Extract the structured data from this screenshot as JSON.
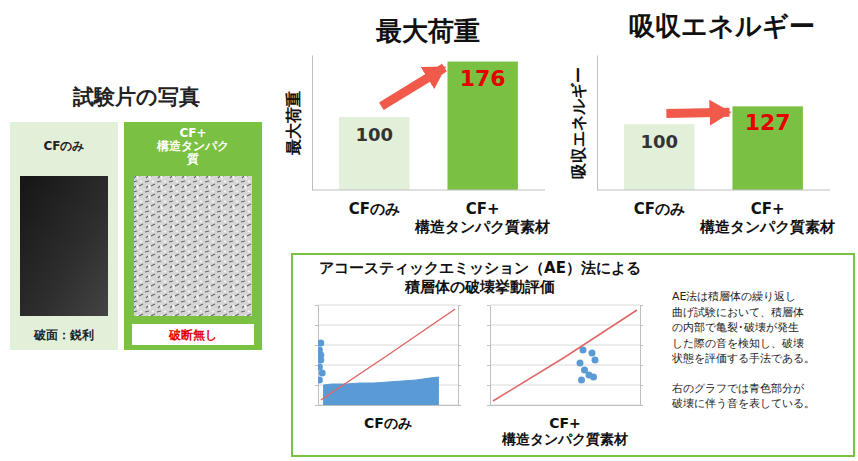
{
  "specimen_panel": {
    "title": "試験片の写真",
    "specimens": [
      {
        "label": "CFのみ",
        "note": "破面：鋭利"
      },
      {
        "label": "CF+\n構造タンパク\n質",
        "note": "破断無し"
      }
    ]
  },
  "chart_data": [
    {
      "type": "bar",
      "title": "最大荷重",
      "y_label": "最大荷重",
      "categories": [
        "CFのみ",
        "CF+\n構造タンパク質素材"
      ],
      "values": [
        100,
        176
      ],
      "colors": [
        "#e2efd9",
        "#7ac143"
      ],
      "ylim": [
        0,
        185
      ],
      "data_labels": true,
      "tick_labels": "x"
    },
    {
      "type": "bar",
      "title": "吸収エネルギー",
      "y_label": "吸収エネルギー",
      "categories": [
        "CFのみ",
        "CF+\n構造タンパク質素材"
      ],
      "values": [
        100,
        127
      ],
      "colors": [
        "#e2efd9",
        "#7ac143"
      ],
      "ylim": [
        0,
        205
      ],
      "data_labels": true,
      "tick_labels": "x"
    },
    {
      "type": "combo",
      "title": "CFのみ",
      "xlim": [
        0,
        100
      ],
      "ylim": [
        0,
        100
      ],
      "yticks": [
        0,
        20,
        40,
        60,
        80,
        100
      ],
      "y2lim": [
        0,
        100
      ],
      "y2ticks": [
        0,
        20,
        40,
        60,
        80,
        100
      ],
      "grid": true,
      "tick_labels": false,
      "series": [
        {
          "type": "area",
          "color": "#5b9bd5",
          "x": [
            4,
            10,
            20,
            30,
            40,
            50,
            60,
            70,
            80,
            86
          ],
          "values": [
            20,
            21,
            21,
            22,
            22,
            23,
            24,
            25,
            27,
            28
          ]
        },
        {
          "type": "scatter",
          "color": "#5b9bd5",
          "x": [
            1,
            2,
            1,
            3,
            2,
            1,
            2
          ],
          "values": [
            55,
            45,
            38,
            32,
            62,
            25,
            50
          ]
        },
        {
          "type": "line",
          "color": "#e06666",
          "axis": "y2",
          "x": [
            2,
            50,
            98
          ],
          "values": [
            5,
            50,
            96
          ]
        }
      ]
    },
    {
      "type": "combo",
      "title": "CF+\n構造タンパク質素材",
      "xlim": [
        0,
        100
      ],
      "ylim": [
        0,
        100
      ],
      "yticks": [
        0,
        20,
        40,
        60,
        80,
        100
      ],
      "y2lim": [
        0,
        100
      ],
      "y2ticks": [
        0,
        20,
        40,
        60,
        80,
        100
      ],
      "grid": true,
      "tick_labels": false,
      "series": [
        {
          "type": "scatter",
          "color": "#5b9bd5",
          "x": [
            62,
            68,
            60,
            70,
            63,
            66,
            61,
            69
          ],
          "values": [
            55,
            52,
            42,
            45,
            35,
            30,
            25,
            28
          ]
        },
        {
          "type": "line",
          "color": "#e06666",
          "axis": "y2",
          "x": [
            2,
            50,
            98
          ],
          "values": [
            4,
            48,
            95
          ]
        }
      ]
    }
  ],
  "ae_panel": {
    "title": "アコースティックエミッション（AE）法による\n積層体の破壊挙動評価",
    "description": [
      "AE法は積層体の繰り返し\n曲げ試験において、積層体\nの内部で亀裂･破壊が発生\nした際の音を検知し、破壊\n状態を評価する手法である。",
      "右のグラフでは青色部分が\n破壊に伴う音を表している。"
    ]
  }
}
